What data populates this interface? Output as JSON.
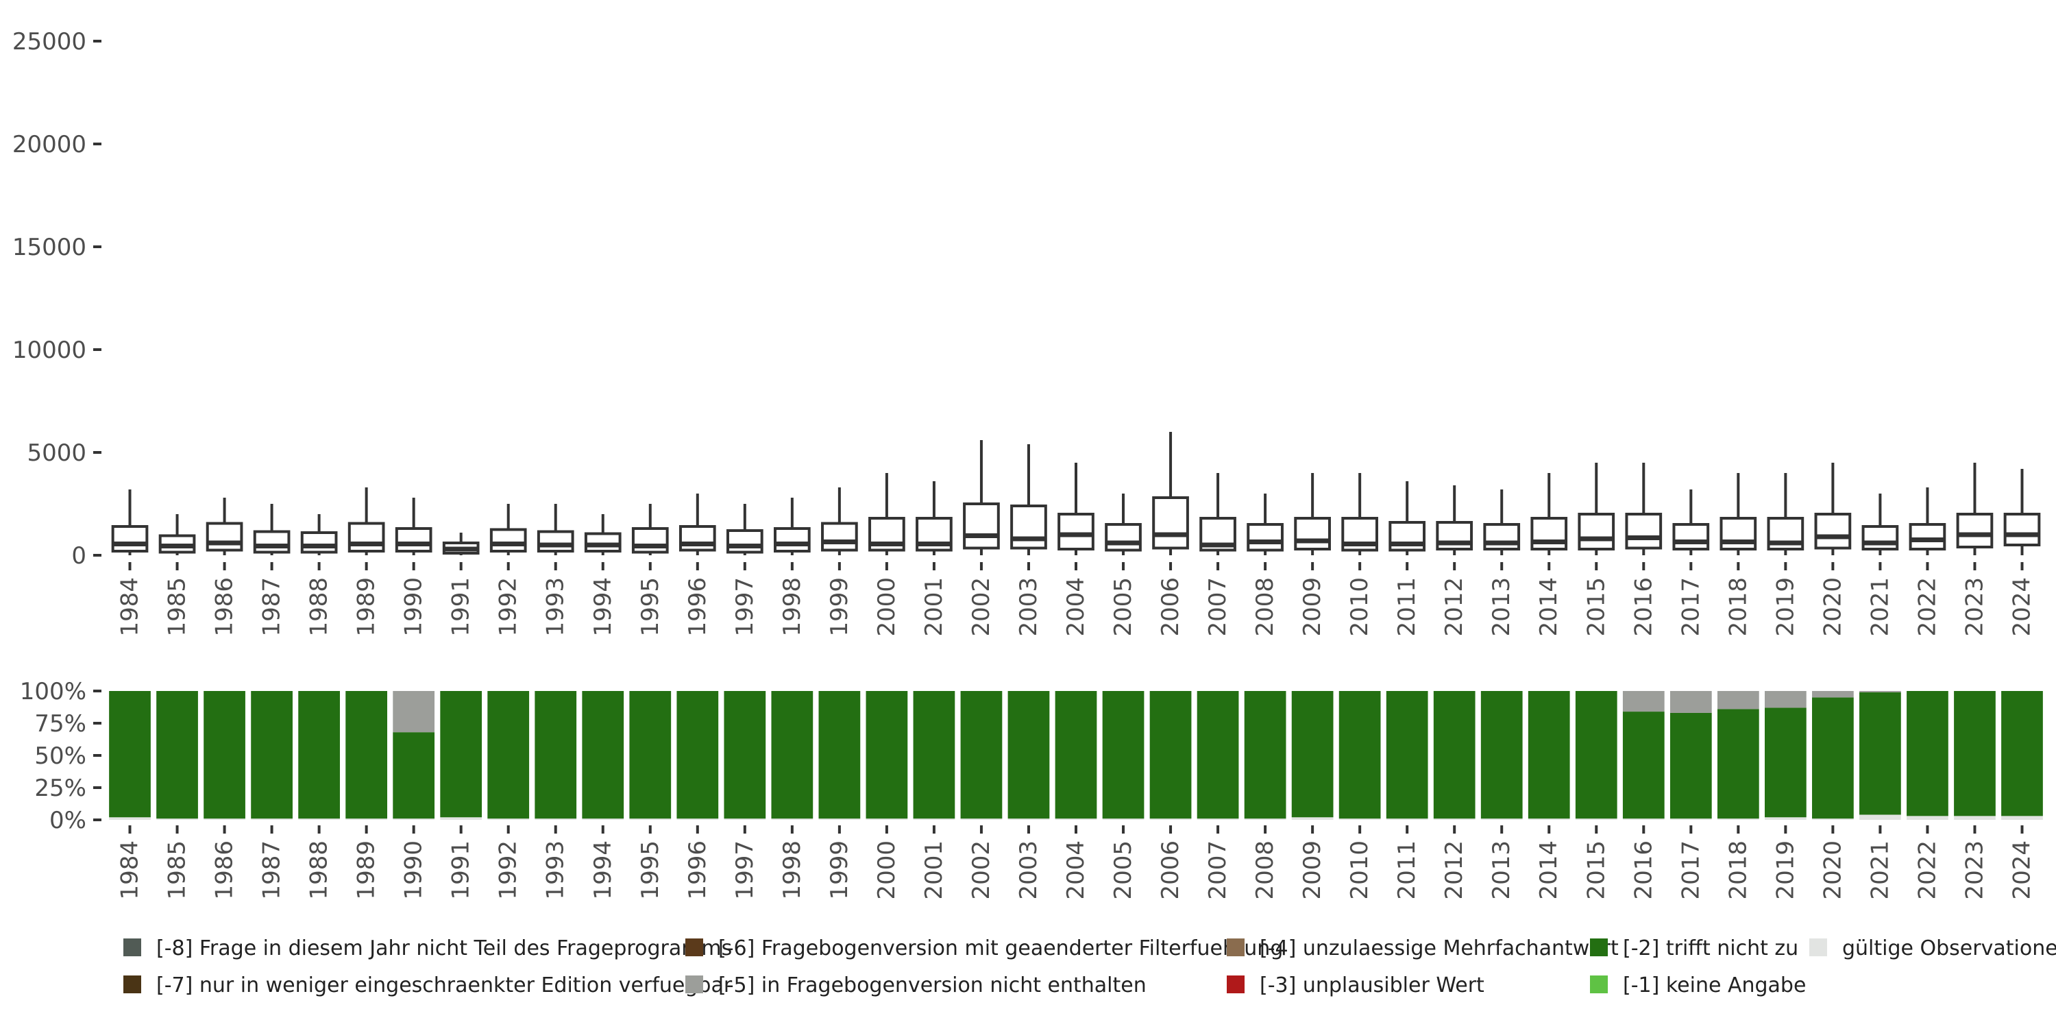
{
  "chart_data": [
    {
      "type": "boxplot",
      "title": "",
      "xlabel": "",
      "ylabel": "",
      "ylim": [
        0,
        25000
      ],
      "yticks": [
        0,
        5000,
        10000,
        15000,
        20000,
        25000
      ],
      "ytick_labels": [
        "0",
        "5000",
        "10000",
        "15000",
        "20000",
        "25000"
      ],
      "grid": false,
      "categories": [
        "1984",
        "1985",
        "1986",
        "1987",
        "1988",
        "1989",
        "1990",
        "1991",
        "1992",
        "1993",
        "1994",
        "1995",
        "1996",
        "1997",
        "1998",
        "1999",
        "2000",
        "2001",
        "2002",
        "2003",
        "2004",
        "2005",
        "2006",
        "2007",
        "2008",
        "2009",
        "2010",
        "2011",
        "2012",
        "2013",
        "2014",
        "2015",
        "2016",
        "2017",
        "2018",
        "2019",
        "2020",
        "2021",
        "2022",
        "2023",
        "2024"
      ],
      "boxes": [
        {
          "whisker_low": 0,
          "q1": 200,
          "median": 550,
          "q3": 1400,
          "whisker_high": 3200
        },
        {
          "whisker_low": 0,
          "q1": 150,
          "median": 450,
          "q3": 950,
          "whisker_high": 2000
        },
        {
          "whisker_low": 0,
          "q1": 250,
          "median": 600,
          "q3": 1550,
          "whisker_high": 2800
        },
        {
          "whisker_low": 0,
          "q1": 150,
          "median": 450,
          "q3": 1150,
          "whisker_high": 2500
        },
        {
          "whisker_low": 0,
          "q1": 150,
          "median": 450,
          "q3": 1100,
          "whisker_high": 2000
        },
        {
          "whisker_low": 0,
          "q1": 200,
          "median": 550,
          "q3": 1550,
          "whisker_high": 3300
        },
        {
          "whisker_low": 0,
          "q1": 200,
          "median": 550,
          "q3": 1300,
          "whisker_high": 2800
        },
        {
          "whisker_low": 0,
          "q1": 100,
          "median": 300,
          "q3": 600,
          "whisker_high": 1100
        },
        {
          "whisker_low": 0,
          "q1": 200,
          "median": 550,
          "q3": 1250,
          "whisker_high": 2500
        },
        {
          "whisker_low": 0,
          "q1": 200,
          "median": 500,
          "q3": 1150,
          "whisker_high": 2500
        },
        {
          "whisker_low": 0,
          "q1": 200,
          "median": 500,
          "q3": 1050,
          "whisker_high": 2000
        },
        {
          "whisker_low": 0,
          "q1": 150,
          "median": 450,
          "q3": 1300,
          "whisker_high": 2500
        },
        {
          "whisker_low": 0,
          "q1": 250,
          "median": 550,
          "q3": 1400,
          "whisker_high": 3000
        },
        {
          "whisker_low": 0,
          "q1": 150,
          "median": 450,
          "q3": 1200,
          "whisker_high": 2500
        },
        {
          "whisker_low": 0,
          "q1": 200,
          "median": 550,
          "q3": 1300,
          "whisker_high": 2800
        },
        {
          "whisker_low": 0,
          "q1": 250,
          "median": 650,
          "q3": 1550,
          "whisker_high": 3300
        },
        {
          "whisker_low": 0,
          "q1": 250,
          "median": 550,
          "q3": 1800,
          "whisker_high": 4000
        },
        {
          "whisker_low": 0,
          "q1": 250,
          "median": 550,
          "q3": 1800,
          "whisker_high": 3600
        },
        {
          "whisker_low": 0,
          "q1": 350,
          "median": 950,
          "q3": 2500,
          "whisker_high": 5600
        },
        {
          "whisker_low": 0,
          "q1": 350,
          "median": 800,
          "q3": 2400,
          "whisker_high": 5400
        },
        {
          "whisker_low": 0,
          "q1": 300,
          "median": 1000,
          "q3": 2000,
          "whisker_high": 4500
        },
        {
          "whisker_low": 0,
          "q1": 250,
          "median": 600,
          "q3": 1500,
          "whisker_high": 3000
        },
        {
          "whisker_low": 0,
          "q1": 350,
          "median": 1000,
          "q3": 2800,
          "whisker_high": 6000
        },
        {
          "whisker_low": 0,
          "q1": 250,
          "median": 500,
          "q3": 1800,
          "whisker_high": 4000
        },
        {
          "whisker_low": 0,
          "q1": 250,
          "median": 650,
          "q3": 1500,
          "whisker_high": 3000
        },
        {
          "whisker_low": 0,
          "q1": 300,
          "median": 700,
          "q3": 1800,
          "whisker_high": 4000
        },
        {
          "whisker_low": 0,
          "q1": 250,
          "median": 550,
          "q3": 1800,
          "whisker_high": 4000
        },
        {
          "whisker_low": 0,
          "q1": 250,
          "median": 550,
          "q3": 1600,
          "whisker_high": 3600
        },
        {
          "whisker_low": 0,
          "q1": 300,
          "median": 600,
          "q3": 1600,
          "whisker_high": 3400
        },
        {
          "whisker_low": 0,
          "q1": 300,
          "median": 600,
          "q3": 1500,
          "whisker_high": 3200
        },
        {
          "whisker_low": 0,
          "q1": 300,
          "median": 650,
          "q3": 1800,
          "whisker_high": 4000
        },
        {
          "whisker_low": 0,
          "q1": 300,
          "median": 800,
          "q3": 2000,
          "whisker_high": 4500
        },
        {
          "whisker_low": 0,
          "q1": 350,
          "median": 850,
          "q3": 2000,
          "whisker_high": 4500
        },
        {
          "whisker_low": 0,
          "q1": 300,
          "median": 650,
          "q3": 1500,
          "whisker_high": 3200
        },
        {
          "whisker_low": 0,
          "q1": 300,
          "median": 650,
          "q3": 1800,
          "whisker_high": 4000
        },
        {
          "whisker_low": 0,
          "q1": 300,
          "median": 600,
          "q3": 1800,
          "whisker_high": 4000
        },
        {
          "whisker_low": 0,
          "q1": 350,
          "median": 900,
          "q3": 2000,
          "whisker_high": 4500
        },
        {
          "whisker_low": 0,
          "q1": 300,
          "median": 600,
          "q3": 1400,
          "whisker_high": 3000
        },
        {
          "whisker_low": 0,
          "q1": 300,
          "median": 750,
          "q3": 1500,
          "whisker_high": 3300
        },
        {
          "whisker_low": 0,
          "q1": 400,
          "median": 1000,
          "q3": 2000,
          "whisker_high": 4500
        },
        {
          "whisker_low": 0,
          "q1": 500,
          "median": 1000,
          "q3": 2000,
          "whisker_high": 4200
        }
      ],
      "box_color": "#ffffff",
      "line_color": "#333333"
    },
    {
      "type": "stacked_bar",
      "title": "",
      "ylim": [
        0,
        100
      ],
      "yticks": [
        0,
        25,
        50,
        75,
        100
      ],
      "ytick_labels": [
        "0%",
        "25%",
        "50%",
        "75%",
        "100%"
      ],
      "grid": false,
      "categories": [
        "1984",
        "1985",
        "1986",
        "1987",
        "1988",
        "1989",
        "1990",
        "1991",
        "1992",
        "1993",
        "1994",
        "1995",
        "1996",
        "1997",
        "1998",
        "1999",
        "2000",
        "2001",
        "2002",
        "2003",
        "2004",
        "2005",
        "2006",
        "2007",
        "2008",
        "2009",
        "2010",
        "2011",
        "2012",
        "2013",
        "2014",
        "2015",
        "2016",
        "2017",
        "2018",
        "2019",
        "2020",
        "2021",
        "2022",
        "2023",
        "2024"
      ],
      "series": [
        {
          "name": "gültige Observationen",
          "color": "#e2e4e2",
          "values": [
            2,
            1,
            1,
            1,
            1,
            1,
            1,
            2,
            1,
            1,
            1,
            1,
            1,
            1,
            1,
            1,
            1,
            1,
            1,
            1,
            1,
            1,
            1,
            1,
            1,
            2,
            1,
            1,
            1,
            1,
            1,
            1,
            1,
            1,
            1,
            2,
            1,
            4,
            3,
            3,
            3
          ]
        },
        {
          "name": "[-2] trifft nicht zu",
          "color": "#236f12",
          "values": [
            98,
            99,
            99,
            99,
            99,
            99,
            67,
            98,
            99,
            99,
            99,
            99,
            99,
            99,
            99,
            99,
            99,
            99,
            99,
            99,
            99,
            99,
            99,
            99,
            99,
            98,
            99,
            99,
            99,
            99,
            99,
            99,
            83,
            82,
            85,
            85,
            94,
            95,
            97,
            97,
            97
          ]
        },
        {
          "name": "[-5] in Fragebogenversion nicht enthalten",
          "color": "#9c9e9a",
          "values": [
            0,
            0,
            0,
            0,
            0,
            0,
            32,
            0,
            0,
            0,
            0,
            0,
            0,
            0,
            0,
            0,
            0,
            0,
            0,
            0,
            0,
            0,
            0,
            0,
            0,
            0,
            0,
            0,
            0,
            0,
            0,
            0,
            16,
            17,
            14,
            13,
            5,
            1,
            0,
            0,
            0
          ]
        }
      ]
    }
  ],
  "legend": {
    "placement": "bottom",
    "items": [
      {
        "label": "[-8] Frage in diesem Jahr nicht Teil des Frageprogramms",
        "color": "#515b55"
      },
      {
        "label": "[-7] nur in weniger eingeschraenkter Edition verfuegbar",
        "color": "#4a3415"
      },
      {
        "label": "[-6] Fragebogenversion mit geaenderter Filterfuehrung",
        "color": "#5b3a1b"
      },
      {
        "label": "[-5] in Fragebogenversion nicht enthalten",
        "color": "#9c9e9a"
      },
      {
        "label": "[-4] unzulaessige Mehrfachantwort",
        "color": "#8a6c4e"
      },
      {
        "label": "[-3] unplausibler Wert",
        "color": "#b0191a"
      },
      {
        "label": "[-2] trifft nicht zu",
        "color": "#236f12"
      },
      {
        "label": "[-1] keine Angabe",
        "color": "#5fc244"
      },
      {
        "label": "gültige Observationen",
        "color": "#e2e4e2"
      }
    ]
  }
}
